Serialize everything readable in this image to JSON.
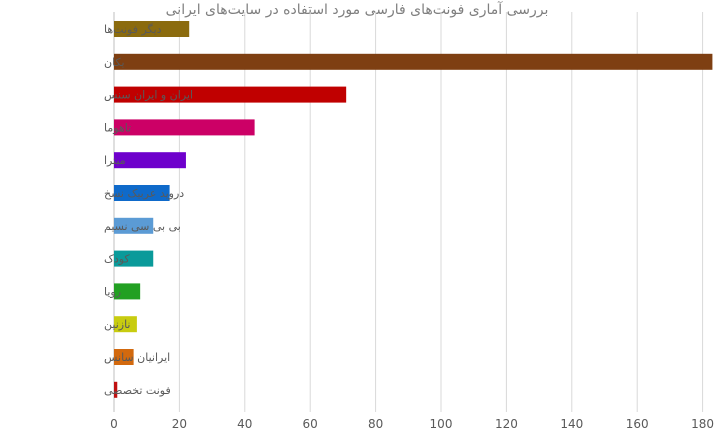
{
  "chart_data": {
    "type": "bar",
    "orientation": "horizontal",
    "title": "بررسی آماری فونت‌های فارسی مورد استفاده در سایت‌های ایرانی",
    "xlabel": "",
    "ylabel": "",
    "xlim": [
      0,
      180
    ],
    "x_ticks": [
      0,
      20,
      40,
      60,
      80,
      100,
      120,
      140,
      160,
      180
    ],
    "grid": "vertical",
    "categories": [
      "دیگر فونت‌ها",
      "یکان",
      "ایران و ایران سنس",
      "تاهوما",
      "میترا",
      "دروید عربیک نسخ",
      "بی بی سی نسیم",
      "کودک",
      "رویا",
      "نازنین",
      "ایرانیان سانس",
      "فونت تخصصی"
    ],
    "values": [
      23,
      183,
      71,
      43,
      22,
      17,
      12,
      12,
      8,
      7,
      6,
      1
    ],
    "colors": [
      "#8B6B0E",
      "#7E3F12",
      "#C00000",
      "#CC0066",
      "#6E00CC",
      "#0F6ACA",
      "#5B9BD5",
      "#0A9A9A",
      "#22A022",
      "#C8CC10",
      "#D2690E",
      "#C01010"
    ]
  }
}
